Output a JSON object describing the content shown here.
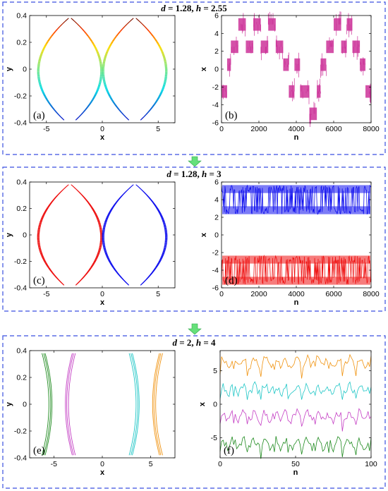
{
  "panels_rows": [
    {
      "title": "d = 1.28, h = 2.55",
      "title_d": "d",
      "title_dval": " = 1.28, ",
      "title_h": "h",
      "title_hval": " = 2.55"
    },
    {
      "title": "d = 1.28, h = 3",
      "title_d": "d",
      "title_dval": " = 1.28, ",
      "title_h": "h",
      "title_hval": " = 3"
    },
    {
      "title": "d = 2, h = 4",
      "title_d": "d",
      "title_dval": " = 2, ",
      "title_h": "h",
      "title_hval": " = 4"
    }
  ],
  "colors": {
    "frame": "#3a4fe0",
    "arrow": "#66e07a",
    "magenta": "#cc3399",
    "blue": "#1010ee",
    "red": "#ee1010",
    "orange": "#f0920e",
    "cyan": "#1ec6c6",
    "purple": "#c43ec4",
    "green": "#1e8a1e"
  },
  "chart_data": [
    {
      "id": "a",
      "type": "scatter",
      "panel_label": "(a)",
      "xlabel": "x",
      "ylabel": "y",
      "xlim": [
        -6.5,
        6.5
      ],
      "ylim": [
        -0.4,
        0.4
      ],
      "xticks": [
        "-5",
        "0",
        "5"
      ],
      "yticks": [
        "0.4",
        "0.2",
        "0",
        "-0.2",
        "-0.4"
      ],
      "attractors": [
        {
          "center": -2.9,
          "width": 2.8,
          "coloring": "rainbow"
        },
        {
          "center": 2.9,
          "width": 2.8,
          "coloring": "rainbow"
        }
      ]
    },
    {
      "id": "b",
      "type": "line",
      "panel_label": "(b)",
      "xlabel": "n",
      "ylabel": "x",
      "xlim": [
        0,
        8000
      ],
      "ylim": [
        -6,
        6
      ],
      "xticks": [
        "0",
        "2000",
        "4000",
        "6000",
        "8000"
      ],
      "yticks": [
        "6",
        "4",
        "2",
        "0",
        "-2",
        "-4",
        "-6"
      ],
      "segments": [
        [
          0,
          300,
          -2.5
        ],
        [
          300,
          500,
          0.5
        ],
        [
          500,
          900,
          2.5
        ],
        [
          900,
          1300,
          5
        ],
        [
          1300,
          1700,
          2.5
        ],
        [
          1700,
          2100,
          5
        ],
        [
          2100,
          2500,
          2.5
        ],
        [
          2500,
          2900,
          5
        ],
        [
          2900,
          3300,
          2.5
        ],
        [
          3300,
          3600,
          0.5
        ],
        [
          3600,
          3900,
          -2.5
        ],
        [
          3900,
          4200,
          0.5
        ],
        [
          4200,
          4700,
          -2.5
        ],
        [
          4700,
          5100,
          -5
        ],
        [
          5100,
          5300,
          -2.5
        ],
        [
          5300,
          5600,
          0.5
        ],
        [
          5600,
          6000,
          2.5
        ],
        [
          6000,
          6400,
          5
        ],
        [
          6400,
          6700,
          2.5
        ],
        [
          6700,
          7000,
          5
        ],
        [
          7000,
          7400,
          2.5
        ],
        [
          7400,
          7700,
          0.5
        ],
        [
          7700,
          8000,
          -2.5
        ]
      ],
      "series": [
        {
          "color": "#cc3399"
        }
      ]
    },
    {
      "id": "c",
      "type": "scatter",
      "panel_label": "(c)",
      "xlabel": "x",
      "ylabel": "y",
      "xlim": [
        -6.5,
        6.5
      ],
      "ylim": [
        -0.4,
        0.4
      ],
      "xticks": [
        "-5",
        "0",
        "5"
      ],
      "yticks": [
        "0.4",
        "0.2",
        "0",
        "-0.2",
        "-0.4"
      ],
      "attractors": [
        {
          "center": -2.9,
          "width": 2.8,
          "coloring": "#ee1010"
        },
        {
          "center": 2.9,
          "width": 2.8,
          "coloring": "#1010ee"
        }
      ]
    },
    {
      "id": "d",
      "type": "line",
      "panel_label": "(d)",
      "xlabel": "n",
      "ylabel": "x",
      "xlim": [
        0,
        8000
      ],
      "ylim": [
        -6,
        6
      ],
      "xticks": [
        "0",
        "2000",
        "4000",
        "6000",
        "8000"
      ],
      "yticks": [
        "6",
        "4",
        "2",
        "0",
        "-2",
        "-4",
        "-6"
      ],
      "bands": [
        {
          "color": "#1010ee",
          "levels": [
            2.8,
            5.2
          ],
          "range": [
            0.5,
            5.6
          ]
        },
        {
          "color": "#ee1010",
          "levels": [
            -2.8,
            -5.2
          ],
          "range": [
            -5.6,
            -0.5
          ]
        }
      ]
    },
    {
      "id": "e",
      "type": "scatter",
      "panel_label": "(e)",
      "xlabel": "x",
      "ylabel": "y",
      "xlim": [
        -7.5,
        7.5
      ],
      "ylim": [
        -0.4,
        0.4
      ],
      "xticks": [
        "-5",
        "0",
        "5"
      ],
      "yticks": [
        "0.4",
        "0.2",
        "0",
        "-0.2",
        "-0.4"
      ],
      "arcs": [
        {
          "center": -5.9,
          "bow": 1.3,
          "color": "#1e8a1e"
        },
        {
          "center": -3.1,
          "bow": -1.3,
          "color": "#c43ec4"
        },
        {
          "center": 3.1,
          "bow": 1.3,
          "color": "#1ec6c6"
        },
        {
          "center": 5.9,
          "bow": -1.3,
          "color": "#f0920e"
        }
      ]
    },
    {
      "id": "f",
      "type": "line",
      "panel_label": "(f)",
      "xlabel": "n",
      "ylabel": "x",
      "xlim": [
        0,
        100
      ],
      "ylim": [
        -8,
        8
      ],
      "xticks": [
        "0",
        "50",
        "100"
      ],
      "yticks": [
        "5",
        "0",
        "-5"
      ],
      "series": [
        {
          "color": "#f0920e",
          "base": 6.3
        },
        {
          "color": "#1ec6c6",
          "base": 2.2
        },
        {
          "color": "#c43ec4",
          "base": -1.8
        },
        {
          "color": "#1e8a1e",
          "base": -5.9
        }
      ]
    }
  ]
}
